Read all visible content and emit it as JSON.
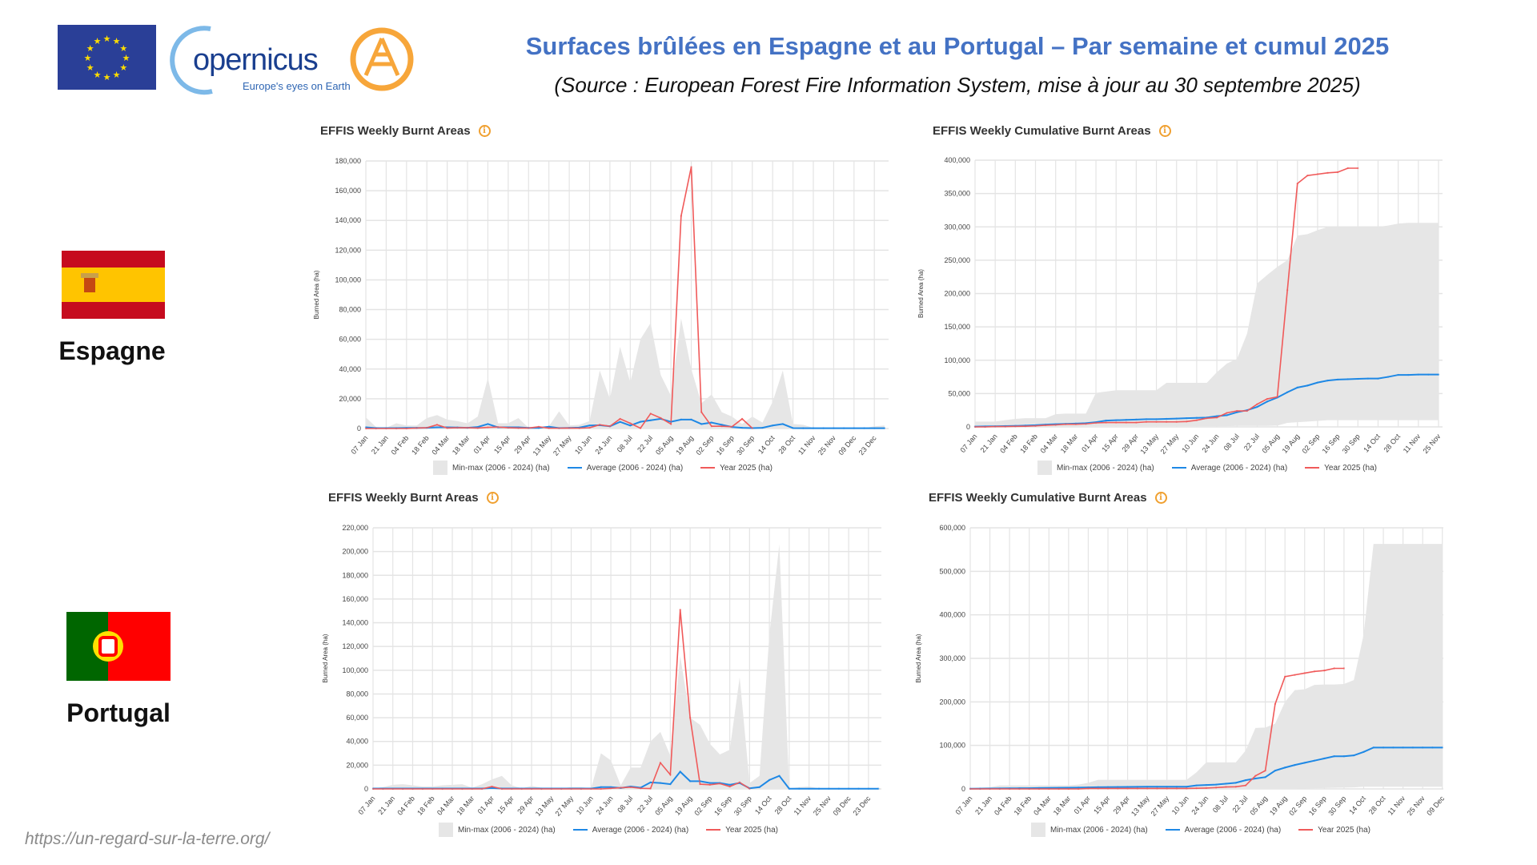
{
  "header": {
    "title": "Surfaces brûlées en Espagne et au Portugal – Par semaine et cumul 2025",
    "subtitle": "(Source : European Forest Fire Information System, mise à jour au 30 septembre 2025)",
    "logo_text": "opernicus",
    "logo_tagline": "Europe's eyes on Earth"
  },
  "countries": {
    "spain": "Espagne",
    "portugal": "Portugal"
  },
  "footer_url": "https://un-regard-sur-la-terre.org/",
  "colors": {
    "title": "#4472c4",
    "average": "#1e88e5",
    "year": "#f05a5a",
    "minmax": "#e6e6e6",
    "info": "#f0a030"
  },
  "legend": {
    "minmax": "Min-max (2006 - 2024) (ha)",
    "average": "Average (2006 - 2024) (ha)",
    "year": "Year 2025 (ha)"
  },
  "chart_data": [
    {
      "type": "area",
      "country": "Spain",
      "title": "EFFIS Weekly Burnt Areas",
      "info_icon": "i",
      "ylabel": "Burned Area (ha)",
      "ylim": [
        0,
        180000
      ],
      "yticks": [
        "0",
        "20,000",
        "40,000",
        "60,000",
        "80,000",
        "100,000",
        "120,000",
        "140,000",
        "160,000",
        "180,000"
      ],
      "xticks": [
        "07 Jan",
        "21 Jan",
        "04 Feb",
        "18 Feb",
        "04 Mar",
        "18 Mar",
        "01 Apr",
        "15 Apr",
        "29 Apr",
        "13 May",
        "27 May",
        "10 Jun",
        "24 Jun",
        "08 Jul",
        "22 Jul",
        "05 Aug",
        "19 Aug",
        "02 Sep",
        "16 Sep",
        "30 Sep",
        "14 Oct",
        "28 Oct",
        "11 Nov",
        "25 Nov",
        "09 Dec",
        "23 Dec"
      ],
      "x_step_weeks": 1,
      "series": {
        "max": [
          7500,
          1000,
          500,
          3500,
          2000,
          2000,
          7000,
          9000,
          6000,
          5000,
          3500,
          8000,
          34000,
          3500,
          3500,
          7000,
          500,
          800,
          1500,
          11500,
          2000,
          2500,
          5000,
          39000,
          20000,
          55000,
          31000,
          60000,
          71000,
          36000,
          22000,
          74000,
          40000,
          17000,
          23000,
          11000,
          8000,
          3000,
          8000,
          4000,
          18000,
          39000,
          3000,
          2500,
          500,
          500,
          500,
          300,
          300,
          300,
          1500,
          2000
        ],
        "min": [
          0,
          0,
          0,
          0,
          0,
          0,
          0,
          0,
          0,
          0,
          0,
          0,
          0,
          0,
          0,
          0,
          0,
          0,
          0,
          0,
          0,
          0,
          0,
          0,
          0,
          0,
          0,
          0,
          0,
          0,
          0,
          0,
          0,
          0,
          0,
          0,
          0,
          0,
          0,
          0,
          0,
          0,
          0,
          0,
          0,
          0,
          0,
          0,
          0,
          0,
          0,
          0
        ],
        "average": [
          800,
          300,
          300,
          300,
          400,
          400,
          500,
          800,
          800,
          700,
          500,
          1000,
          3000,
          800,
          800,
          800,
          400,
          400,
          1200,
          300,
          400,
          600,
          2000,
          2200,
          1500,
          4500,
          2000,
          4500,
          5500,
          6500,
          4500,
          6000,
          6000,
          3000,
          4000,
          2500,
          1000,
          500,
          300,
          500,
          2000,
          3000,
          300,
          200,
          200,
          200,
          200,
          200,
          200,
          200,
          200,
          200
        ],
        "year": [
          0,
          0,
          0,
          0,
          0,
          300,
          500,
          2500,
          300,
          500,
          500,
          300,
          800,
          1000,
          500,
          300,
          300,
          1200,
          200,
          200,
          300,
          200,
          500,
          2500,
          1500,
          6500,
          3500,
          200,
          10000,
          7000,
          3000,
          143000,
          176000,
          11000,
          1500,
          1500,
          1200,
          6500,
          200
        ]
      }
    },
    {
      "type": "area",
      "country": "Spain",
      "title": "EFFIS Weekly Cumulative Burnt Areas",
      "info_icon": "i",
      "ylabel": "Burned Area (ha)",
      "ylim": [
        0,
        400000
      ],
      "yticks": [
        "0",
        "50,000",
        "100,000",
        "150,000",
        "200,000",
        "250,000",
        "300,000",
        "350,000",
        "400,000"
      ],
      "xticks": [
        "07 Jan",
        "21 Jan",
        "04 Feb",
        "18 Feb",
        "04 Mar",
        "18 Mar",
        "01 Apr",
        "15 Apr",
        "29 Apr",
        "13 May",
        "27 May",
        "10 Jun",
        "24 Jun",
        "08 Jul",
        "22 Jul",
        "05 Aug",
        "19 Aug",
        "02 Sep",
        "16 Sep",
        "30 Sep",
        "14 Oct",
        "28 Oct",
        "11 Nov",
        "25 Nov"
      ],
      "series": {
        "max": [
          8000,
          8000,
          8000,
          10000,
          12000,
          13000,
          13000,
          13000,
          19000,
          20000,
          20000,
          20000,
          51000,
          53000,
          55000,
          55000,
          55000,
          55000,
          55000,
          66000,
          66000,
          66000,
          66000,
          66000,
          82000,
          95000,
          102000,
          140000,
          215000,
          228000,
          240000,
          250000,
          287000,
          289000,
          295000,
          300000,
          300000,
          300000,
          300000,
          300000,
          300000,
          302000,
          305000,
          306000,
          306000,
          306000,
          306000
        ],
        "min": [
          500,
          500,
          500,
          500,
          500,
          500,
          500,
          800,
          800,
          800,
          800,
          1000,
          1000,
          1000,
          1000,
          1000,
          1000,
          1000,
          1000,
          1000,
          1000,
          1000,
          1000,
          1000,
          1000,
          1000,
          1500,
          1500,
          1500,
          1500,
          2000,
          6000,
          7000,
          8000,
          9000,
          10000,
          10000,
          10000,
          10000,
          10000,
          10000,
          10000,
          10000,
          10000,
          10000,
          10000,
          10000
        ],
        "average": [
          500,
          700,
          900,
          1200,
          1500,
          2000,
          2500,
          3500,
          4000,
          4500,
          5000,
          5500,
          7000,
          9500,
          10000,
          10500,
          11000,
          11500,
          11500,
          12000,
          12500,
          13000,
          13500,
          14000,
          16000,
          17500,
          22000,
          25000,
          30000,
          38000,
          44000,
          52000,
          59000,
          62000,
          66500,
          69500,
          71000,
          71500,
          72000,
          72500,
          72500,
          75000,
          78000,
          78000,
          78500,
          78500,
          78500
        ],
        "year": [
          0,
          0,
          500,
          500,
          800,
          1000,
          1500,
          2500,
          3000,
          4000,
          4000,
          4500,
          6000,
          6500,
          6500,
          6500,
          6500,
          7500,
          7500,
          7500,
          7500,
          8000,
          10000,
          13000,
          14000,
          21000,
          24000,
          24000,
          34000,
          42000,
          45000,
          205000,
          365000,
          377000,
          379000,
          381000,
          382000,
          388000,
          388000
        ]
      }
    },
    {
      "type": "area",
      "country": "Portugal",
      "title": "EFFIS Weekly Burnt Areas",
      "info_icon": "i",
      "ylabel": "Burned Area (ha)",
      "ylim": [
        0,
        220000
      ],
      "yticks": [
        "0",
        "20,000",
        "40,000",
        "60,000",
        "80,000",
        "100,000",
        "120,000",
        "140,000",
        "160,000",
        "180,000",
        "200,000",
        "220,000"
      ],
      "xticks": [
        "07 Jan",
        "21 Jan",
        "04 Feb",
        "18 Feb",
        "04 Mar",
        "18 Mar",
        "01 Apr",
        "15 Apr",
        "29 Apr",
        "13 May",
        "27 May",
        "10 Jun",
        "24 Jun",
        "08 Jul",
        "22 Jul",
        "05 Aug",
        "19 Aug",
        "02 Sep",
        "16 Sep",
        "30 Sep",
        "14 Oct",
        "28 Oct",
        "11 Nov",
        "25 Nov",
        "09 Dec",
        "23 Dec"
      ],
      "series": {
        "max": [
          500,
          1500,
          3500,
          4000,
          3000,
          2000,
          2000,
          3000,
          3500,
          4000,
          1000,
          4000,
          8000,
          11000,
          3000,
          500,
          2500,
          1000,
          500,
          500,
          1500,
          1500,
          500,
          30000,
          24000,
          3000,
          18000,
          18000,
          40000,
          48000,
          28000,
          112000,
          60000,
          54000,
          38000,
          29000,
          33000,
          94000,
          5000,
          11000,
          130000,
          206000,
          500,
          1500,
          2000,
          500,
          500,
          500,
          500,
          500,
          500,
          500
        ],
        "min": [
          0,
          0,
          0,
          0,
          0,
          0,
          0,
          0,
          0,
          0,
          0,
          0,
          0,
          0,
          0,
          0,
          0,
          0,
          0,
          0,
          0,
          0,
          0,
          0,
          0,
          0,
          0,
          0,
          0,
          0,
          0,
          0,
          0,
          0,
          0,
          0,
          0,
          0,
          0,
          0,
          0,
          0,
          0,
          0,
          0,
          0,
          0,
          0,
          0,
          0,
          0,
          0
        ],
        "average": [
          300,
          300,
          300,
          300,
          300,
          300,
          300,
          300,
          300,
          300,
          300,
          300,
          800,
          300,
          300,
          300,
          300,
          300,
          300,
          300,
          300,
          300,
          300,
          1500,
          1500,
          800,
          2000,
          1000,
          5500,
          5000,
          4000,
          14500,
          6500,
          6500,
          5000,
          5000,
          3500,
          5000,
          500,
          1500,
          7500,
          11000,
          200,
          200,
          200,
          200,
          200,
          200,
          200,
          200,
          200,
          200
        ],
        "year": [
          0,
          0,
          0,
          0,
          0,
          0,
          0,
          0,
          0,
          0,
          0,
          0,
          2000,
          0,
          0,
          0,
          0,
          0,
          0,
          0,
          0,
          0,
          0,
          0,
          500,
          1000,
          1500,
          500,
          300,
          22000,
          12000,
          151000,
          60000,
          4000,
          3500,
          4500,
          2000,
          5500,
          200
        ]
      }
    },
    {
      "type": "area",
      "country": "Portugal",
      "title": "EFFIS Weekly Cumulative Burnt Areas",
      "info_icon": "i",
      "ylabel": "Burned Area (ha)",
      "ylim": [
        0,
        600000
      ],
      "yticks": [
        "0",
        "100,000",
        "200,000",
        "300,000",
        "400,000",
        "500,000",
        "600,000"
      ],
      "xticks": [
        "07 Jan",
        "21 Jan",
        "04 Feb",
        "18 Feb",
        "04 Mar",
        "18 Mar",
        "01 Apr",
        "15 Apr",
        "29 Apr",
        "13 May",
        "27 May",
        "10 Jun",
        "24 Jun",
        "08 Jul",
        "22 Jul",
        "05 Aug",
        "19 Aug",
        "02 Sep",
        "16 Sep",
        "30 Sep",
        "14 Oct",
        "28 Oct",
        "11 Nov",
        "25 Nov",
        "09 Dec"
      ],
      "series": {
        "max": [
          2000,
          3000,
          4000,
          8000,
          8000,
          8000,
          8000,
          8000,
          8000,
          8000,
          8000,
          10000,
          14000,
          21000,
          21000,
          21000,
          21000,
          21000,
          21000,
          21000,
          21000,
          21000,
          21000,
          38000,
          61000,
          61000,
          61000,
          61000,
          88000,
          140000,
          141000,
          150000,
          200000,
          227000,
          229000,
          239000,
          240000,
          240000,
          241000,
          250000,
          355000,
          563000,
          563000,
          563000,
          563000,
          563000,
          563000,
          563000,
          563000
        ],
        "min": [
          0,
          0,
          0,
          0,
          0,
          0,
          0,
          0,
          0,
          0,
          0,
          0,
          0,
          0,
          0,
          0,
          0,
          0,
          0,
          0,
          0,
          0,
          0,
          0,
          0,
          0,
          0,
          0,
          0,
          0,
          0,
          0,
          0,
          500,
          1000,
          1500,
          2000,
          2500,
          3000,
          3500,
          5000,
          5000,
          5000,
          5000,
          5000,
          5000,
          5000,
          5000,
          5000
        ],
        "average": [
          500,
          700,
          900,
          1100,
          1300,
          1500,
          1700,
          2000,
          2200,
          2500,
          2700,
          3000,
          3500,
          4000,
          4200,
          4400,
          4600,
          4800,
          5000,
          5000,
          5000,
          5000,
          5000,
          8000,
          9000,
          10000,
          12000,
          14000,
          20000,
          24000,
          27000,
          42000,
          49000,
          55000,
          60000,
          65000,
          70000,
          75000,
          75000,
          77000,
          85000,
          95000,
          95000,
          95000,
          95000,
          95000,
          95000,
          95000,
          95000
        ],
        "year": [
          0,
          0,
          0,
          0,
          0,
          0,
          0,
          0,
          0,
          0,
          0,
          0,
          1000,
          1000,
          1000,
          1000,
          1000,
          1000,
          1000,
          1000,
          1000,
          1000,
          1000,
          1500,
          2000,
          3000,
          4500,
          5000,
          8000,
          30000,
          42000,
          195000,
          258000,
          262000,
          266000,
          270000,
          272000,
          277000,
          277000
        ]
      }
    }
  ]
}
